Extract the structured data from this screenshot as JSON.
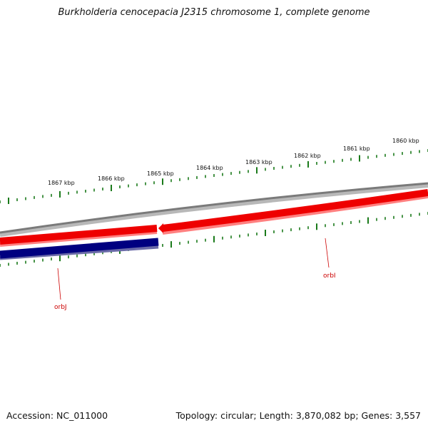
{
  "title": "Burkholderia cenocepacia J2315 chromosome 1, complete genome",
  "footer": {
    "accession": "Accession: NC_011000",
    "stats": "Topology: circular; Length: 3,870,082 bp; Genes: 3,557"
  },
  "ruler": {
    "ticks": [
      {
        "label": "1867 kbp"
      },
      {
        "label": "1866 kbp"
      },
      {
        "label": "1865 kbp"
      },
      {
        "label": "1864 kbp"
      },
      {
        "label": "1863 kbp"
      },
      {
        "label": "1862 kbp"
      },
      {
        "label": "1861 kbp"
      },
      {
        "label": "1860 kbp"
      }
    ]
  },
  "genes": [
    {
      "name": "orbJ",
      "strand": "reverse"
    },
    {
      "name": "orbI",
      "strand": "forward"
    }
  ],
  "colors": {
    "backbone": "#808080",
    "forward_gene": "#ee0000",
    "reverse_gene": "#000080",
    "ruler": "#1a7a1a",
    "label": "#cc0000"
  }
}
